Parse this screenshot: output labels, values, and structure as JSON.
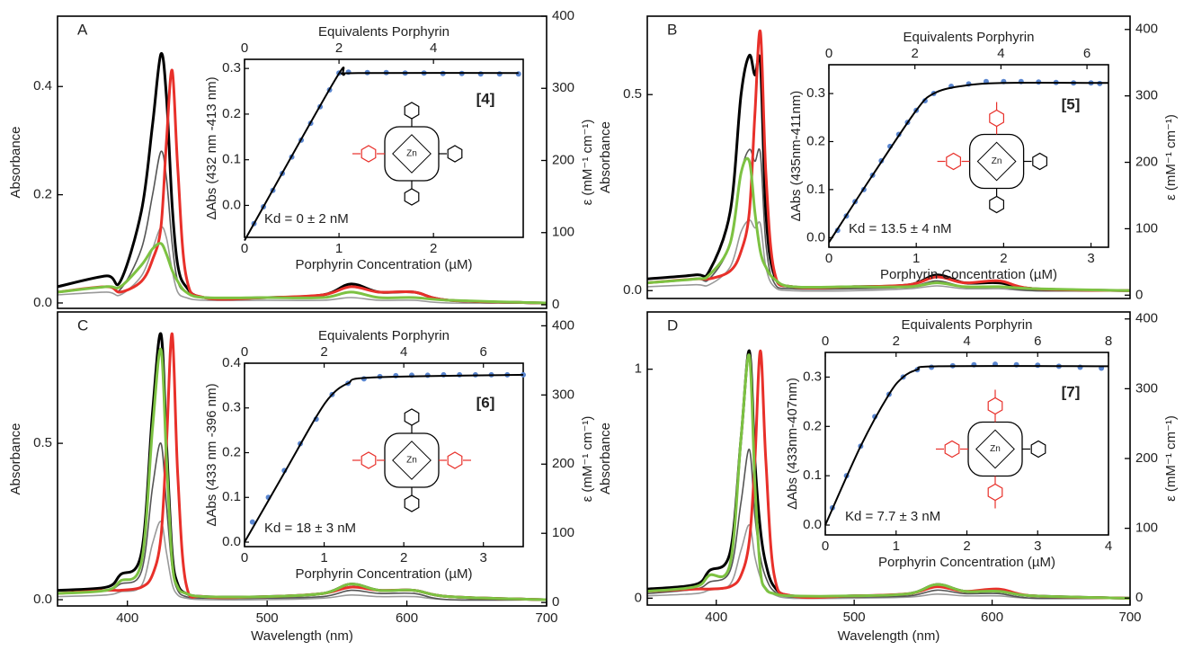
{
  "chart_data": [
    {
      "type": "line",
      "panel": "A",
      "ylabel": "Absorbance",
      "y2label": "ε (mM⁻¹ cm⁻¹)",
      "xlim": [
        350,
        700
      ],
      "ylim": [
        -0.01,
        0.53
      ],
      "yticks": [
        {
          "value": 0,
          "label": "0.0"
        },
        0.2,
        0.4
      ],
      "y2lim": [
        -5,
        400
      ],
      "y2ticks": [
        0,
        100,
        200,
        300,
        400
      ],
      "x": [
        350,
        385,
        395,
        410,
        418,
        424,
        428,
        432,
        436,
        442,
        455,
        500,
        540,
        560,
        580,
        605,
        630,
        700
      ],
      "series": [
        {
          "color": "#999999",
          "values": [
            0.015,
            0.02,
            0.015,
            0.05,
            0.1,
            0.14,
            0.12,
            0.06,
            0.02,
            0.01,
            0.005,
            0.005,
            0.005,
            0.01,
            0.005,
            0.005,
            0,
            0
          ]
        },
        {
          "color": "#555555",
          "values": [
            0.02,
            0.03,
            0.025,
            0.1,
            0.2,
            0.28,
            0.23,
            0.11,
            0.04,
            0.02,
            0.01,
            0.01,
            0.01,
            0.02,
            0.01,
            0.01,
            0.005,
            0
          ]
        },
        {
          "color": "#000000",
          "values": [
            0.03,
            0.05,
            0.04,
            0.17,
            0.33,
            0.46,
            0.38,
            0.18,
            0.07,
            0.03,
            0.01,
            0.01,
            0.015,
            0.035,
            0.02,
            0.02,
            0.005,
            0
          ]
        },
        {
          "color": "#e8302a",
          "values": [
            0.02,
            0.03,
            0.02,
            0.04,
            0.08,
            0.14,
            0.3,
            0.43,
            0.25,
            0.05,
            0.01,
            0.01,
            0.015,
            0.03,
            0.02,
            0.02,
            0.005,
            0
          ]
        },
        {
          "color": "#7dc242",
          "values": [
            0.02,
            0.03,
            0.03,
            0.07,
            0.1,
            0.11,
            0.09,
            0.06,
            0.04,
            0.02,
            0.01,
            0.01,
            0.01,
            0.02,
            0.01,
            0.01,
            0.005,
            0
          ]
        }
      ],
      "inset": {
        "type": "scatter",
        "xlabel": "Porphyrin Concentration (µM)",
        "x2label": "Equivalents Porphyrin",
        "ylabel": "ΔAbs (432 nm -413 nm)",
        "xlim": [
          0,
          2.95
        ],
        "xticks": [
          0,
          1,
          2
        ],
        "x2lim": [
          0,
          5.9
        ],
        "x2ticks": [
          0,
          2,
          4
        ],
        "ylim": [
          -0.07,
          0.32
        ],
        "yticks": [
          {
            "value": 0,
            "label": "0.0"
          },
          0.1,
          0.2,
          0.3
        ],
        "label": "[4]",
        "metal": "Zn",
        "annotation": "Kd = 0 ± 2 nM",
        "series": [
          {
            "color": "#5a86d0",
            "x": [
              0.1,
              0.2,
              0.3,
              0.4,
              0.5,
              0.6,
              0.7,
              0.8,
              0.9,
              1.0,
              1.1,
              1.3,
              1.5,
              1.7,
              1.9,
              2.1,
              2.3,
              2.5,
              2.7,
              2.9
            ],
            "values": [
              -0.04,
              -0.003,
              0.033,
              0.07,
              0.106,
              0.143,
              0.18,
              0.216,
              0.253,
              0.29,
              0.292,
              0.291,
              0.291,
              0.29,
              0.29,
              0.289,
              0.289,
              0.288,
              0.288,
              0.288
            ]
          },
          {
            "type": "line",
            "color": "#000000",
            "x": [
              0,
              0.95,
              1.05,
              1.2,
              2.9
            ],
            "values": [
              -0.077,
              0.272,
              0.286,
              0.29,
              0.29
            ]
          }
        ]
      }
    },
    {
      "type": "line",
      "panel": "B",
      "ylabel": "Absorbance",
      "y2label": "ε (mM⁻¹ cm⁻¹)",
      "xlim": [
        350,
        700
      ],
      "ylim": [
        -0.02,
        0.7
      ],
      "yticks": [
        {
          "value": 0,
          "label": "0.0"
        },
        0.5
      ],
      "y2lim": [
        -5,
        420
      ],
      "y2ticks": [
        0,
        100,
        200,
        300,
        400
      ],
      "x": [
        350,
        385,
        395,
        410,
        418,
        424,
        428,
        432,
        436,
        442,
        455,
        500,
        540,
        560,
        580,
        605,
        630,
        700
      ],
      "series": [
        {
          "color": "#999999",
          "values": [
            0.01,
            0.015,
            0.015,
            0.06,
            0.15,
            0.18,
            0.16,
            0.17,
            0.06,
            0.01,
            0,
            0,
            0.005,
            0.012,
            0.005,
            0.005,
            0,
            0
          ]
        },
        {
          "color": "#555555",
          "values": [
            0.02,
            0.03,
            0.03,
            0.12,
            0.3,
            0.36,
            0.33,
            0.35,
            0.12,
            0.02,
            0.005,
            0.005,
            0.01,
            0.025,
            0.01,
            0.01,
            0,
            0
          ]
        },
        {
          "color": "#000000",
          "values": [
            0.03,
            0.04,
            0.05,
            0.2,
            0.5,
            0.6,
            0.55,
            0.58,
            0.2,
            0.04,
            0.01,
            0.01,
            0.015,
            0.04,
            0.02,
            0.02,
            0.005,
            0
          ]
        },
        {
          "color": "#e8302a",
          "values": [
            0.02,
            0.03,
            0.03,
            0.05,
            0.1,
            0.2,
            0.45,
            0.66,
            0.3,
            0.05,
            0.01,
            0.01,
            0.015,
            0.035,
            0.02,
            0.025,
            0.005,
            0
          ]
        },
        {
          "color": "#7dc242",
          "values": [
            0.02,
            0.03,
            0.04,
            0.12,
            0.3,
            0.33,
            0.2,
            0.1,
            0.06,
            0.03,
            0.01,
            0.01,
            0.01,
            0.02,
            0.01,
            0.01,
            0.005,
            0
          ]
        }
      ],
      "inset": {
        "type": "scatter",
        "xlabel": "Porphyrin Concentration (µM)",
        "x2label": "Equivalents Porphyrin",
        "ylabel": "ΔAbs (435nm-411nm)",
        "xlim": [
          0,
          3.2
        ],
        "xticks": [
          0,
          1,
          2,
          3
        ],
        "x2lim": [
          0,
          6.5
        ],
        "x2ticks": [
          0,
          2,
          4,
          6
        ],
        "ylim": [
          -0.02,
          0.36
        ],
        "yticks": [
          {
            "value": 0,
            "label": "0.0"
          },
          0.1,
          0.2,
          0.3
        ],
        "label": "[5]",
        "metal": "Zn",
        "annotation": "Kd = 13.5 ± 4 nM",
        "series": [
          {
            "color": "#5a86d0",
            "x": [
              0.1,
              0.2,
              0.3,
              0.4,
              0.5,
              0.6,
              0.7,
              0.8,
              0.9,
              1.0,
              1.1,
              1.2,
              1.4,
              1.6,
              1.8,
              2.0,
              2.2,
              2.4,
              2.6,
              2.8,
              3.0,
              3.1
            ],
            "values": [
              0.015,
              0.045,
              0.075,
              0.1,
              0.13,
              0.16,
              0.19,
              0.215,
              0.24,
              0.265,
              0.285,
              0.3,
              0.315,
              0.32,
              0.325,
              0.325,
              0.325,
              0.324,
              0.323,
              0.322,
              0.322,
              0.321
            ]
          },
          {
            "type": "line",
            "color": "#000000",
            "x": [
              0,
              0.5,
              1.0,
              1.2,
              1.5,
              2.0,
              3.2
            ],
            "values": [
              -0.01,
              0.13,
              0.265,
              0.3,
              0.315,
              0.322,
              0.322
            ]
          }
        ]
      }
    },
    {
      "type": "line",
      "panel": "C",
      "ylabel": "Absorbance",
      "y2label": "ε (mM⁻¹ cm⁻¹)",
      "xlabel": "Wavelength (nm)",
      "xlim": [
        350,
        700
      ],
      "xticks": [
        400,
        500,
        600,
        700
      ],
      "ylim": [
        -0.02,
        0.92
      ],
      "yticks": [
        {
          "value": 0,
          "label": "0.0"
        },
        0.5
      ],
      "y2lim": [
        -5,
        420
      ],
      "y2ticks": [
        0,
        100,
        200,
        300,
        400
      ],
      "x": [
        350,
        385,
        395,
        410,
        418,
        424,
        428,
        432,
        436,
        442,
        455,
        500,
        540,
        560,
        580,
        605,
        630,
        700
      ],
      "series": [
        {
          "color": "#999999",
          "values": [
            0.01,
            0.015,
            0.025,
            0.045,
            0.18,
            0.25,
            0.15,
            0.05,
            0.015,
            0.005,
            0,
            0,
            0.005,
            0.015,
            0.01,
            0.01,
            0,
            0
          ]
        },
        {
          "color": "#555555",
          "values": [
            0.02,
            0.03,
            0.05,
            0.09,
            0.36,
            0.5,
            0.3,
            0.1,
            0.03,
            0.01,
            0.005,
            0.005,
            0.01,
            0.03,
            0.02,
            0.02,
            0,
            0
          ]
        },
        {
          "color": "#000000",
          "values": [
            0.03,
            0.04,
            0.08,
            0.15,
            0.6,
            0.85,
            0.5,
            0.15,
            0.05,
            0.02,
            0.01,
            0.01,
            0.02,
            0.05,
            0.03,
            0.03,
            0.01,
            0
          ]
        },
        {
          "color": "#e8302a",
          "values": [
            0.02,
            0.03,
            0.03,
            0.04,
            0.08,
            0.2,
            0.5,
            0.85,
            0.4,
            0.05,
            0.01,
            0.01,
            0.02,
            0.04,
            0.03,
            0.03,
            0.01,
            0
          ]
        },
        {
          "color": "#7dc242",
          "values": [
            0.02,
            0.03,
            0.06,
            0.12,
            0.55,
            0.8,
            0.45,
            0.12,
            0.04,
            0.02,
            0.01,
            0.01,
            0.02,
            0.05,
            0.03,
            0.03,
            0.01,
            0
          ]
        }
      ],
      "inset": {
        "type": "scatter",
        "xlabel": "Porphyrin Concentration (µM)",
        "x2label": "Equivalents Porphyrin",
        "ylabel": "ΔAbs (433 nm -396 nm)",
        "xlim": [
          0,
          3.5
        ],
        "xticks": [
          0,
          1,
          2,
          3
        ],
        "x2lim": [
          0,
          7
        ],
        "x2ticks": [
          0,
          2,
          4,
          6
        ],
        "ylim": [
          -0.01,
          0.4
        ],
        "yticks": [
          {
            "value": 0,
            "label": "0.0"
          },
          0.1,
          0.2,
          0.3,
          0.4
        ],
        "label": "[6]",
        "metal": "Zn",
        "annotation": "Kd = 18 ± 3 nM",
        "series": [
          {
            "color": "#5a86d0",
            "x": [
              0.1,
              0.3,
              0.5,
              0.7,
              0.9,
              1.1,
              1.3,
              1.5,
              1.7,
              1.9,
              2.1,
              2.3,
              2.5,
              2.7,
              2.9,
              3.1,
              3.3,
              3.5
            ],
            "values": [
              0.045,
              0.1,
              0.16,
              0.22,
              0.275,
              0.33,
              0.355,
              0.365,
              0.37,
              0.372,
              0.373,
              0.373,
              0.374,
              0.374,
              0.374,
              0.374,
              0.374,
              0.374
            ]
          },
          {
            "type": "line",
            "color": "#000000",
            "x": [
              0,
              0.5,
              0.9,
              1.1,
              1.3,
              1.6,
              3.5
            ],
            "values": [
              0.0,
              0.155,
              0.28,
              0.33,
              0.355,
              0.368,
              0.374
            ]
          }
        ]
      }
    },
    {
      "type": "line",
      "panel": "D",
      "ylabel": "Absorbance",
      "y2label": "ε (mM⁻¹ cm⁻¹)",
      "xlabel": "Wavelength (nm)",
      "xlim": [
        350,
        700
      ],
      "xticks": [
        400,
        500,
        600,
        700
      ],
      "ylim": [
        -0.03,
        1.25
      ],
      "yticks": [
        0,
        1
      ],
      "y2lim": [
        -10,
        410
      ],
      "y2ticks": [
        0,
        100,
        200,
        300,
        400
      ],
      "x": [
        350,
        385,
        395,
        410,
        418,
        424,
        428,
        432,
        436,
        442,
        455,
        500,
        540,
        560,
        580,
        605,
        630,
        700
      ],
      "series": [
        {
          "color": "#999999",
          "values": [
            0.01,
            0.02,
            0.035,
            0.06,
            0.21,
            0.32,
            0.18,
            0.09,
            0.045,
            0.015,
            0,
            0,
            0.005,
            0.018,
            0.01,
            0.01,
            0,
            0
          ]
        },
        {
          "color": "#555555",
          "values": [
            0.02,
            0.04,
            0.07,
            0.12,
            0.42,
            0.65,
            0.36,
            0.18,
            0.09,
            0.03,
            0.005,
            0.005,
            0.01,
            0.035,
            0.02,
            0.02,
            0,
            0
          ]
        },
        {
          "color": "#000000",
          "values": [
            0.04,
            0.06,
            0.12,
            0.2,
            0.7,
            1.08,
            0.6,
            0.3,
            0.15,
            0.05,
            0.01,
            0.01,
            0.02,
            0.06,
            0.03,
            0.03,
            0.01,
            0
          ]
        },
        {
          "color": "#e8302a",
          "values": [
            0.03,
            0.04,
            0.04,
            0.05,
            0.1,
            0.25,
            0.6,
            1.08,
            0.6,
            0.1,
            0.01,
            0.01,
            0.02,
            0.05,
            0.03,
            0.04,
            0.01,
            0
          ]
        },
        {
          "color": "#7dc242",
          "values": [
            0.03,
            0.05,
            0.1,
            0.15,
            0.7,
            1.06,
            0.5,
            0.12,
            0.04,
            0.02,
            0.01,
            0.01,
            0.02,
            0.06,
            0.03,
            0.03,
            0.01,
            0
          ]
        }
      ],
      "inset": {
        "type": "scatter",
        "xlabel": "Porphyrin Concentration (µM)",
        "x2label": "Equivalents Porphyrin",
        "ylabel": "ΔAbs (433nm-407nm)",
        "xlim": [
          0,
          4
        ],
        "xticks": [
          0,
          1,
          2,
          3,
          4
        ],
        "x2lim": [
          0,
          8
        ],
        "x2ticks": [
          0,
          2,
          4,
          6,
          8
        ],
        "ylim": [
          -0.02,
          0.35
        ],
        "yticks": [
          {
            "value": 0,
            "label": "0.0"
          },
          0.1,
          0.2,
          0.3
        ],
        "label": "[7]",
        "metal": "Zn",
        "annotation": "Kd = 7.7 ± 3 nM",
        "series": [
          {
            "color": "#5a86d0",
            "x": [
              0.1,
              0.3,
              0.5,
              0.7,
              0.9,
              1.1,
              1.3,
              1.5,
              1.8,
              2.1,
              2.4,
              2.7,
              3.0,
              3.3,
              3.6,
              3.9
            ],
            "values": [
              0.035,
              0.1,
              0.16,
              0.22,
              0.265,
              0.3,
              0.315,
              0.32,
              0.323,
              0.325,
              0.326,
              0.325,
              0.324,
              0.322,
              0.32,
              0.318
            ]
          },
          {
            "type": "line",
            "color": "#000000",
            "x": [
              0,
              0.5,
              0.9,
              1.1,
              1.3,
              1.6,
              4
            ],
            "values": [
              0.0,
              0.16,
              0.265,
              0.3,
              0.315,
              0.322,
              0.322
            ]
          }
        ]
      }
    }
  ]
}
